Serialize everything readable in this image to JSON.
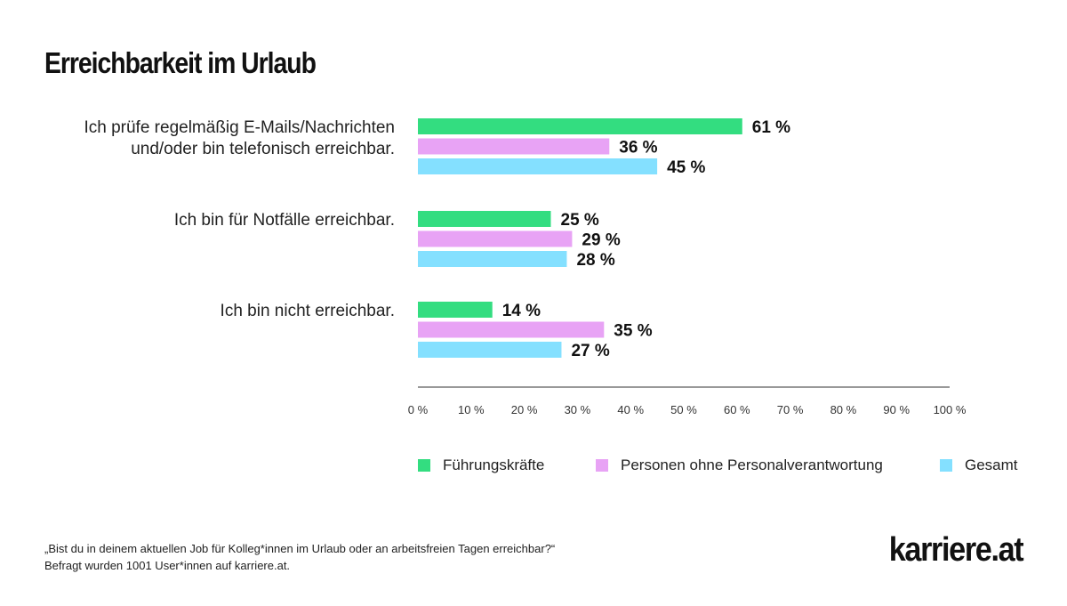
{
  "page": {
    "title": "Erreichbarkeit im Urlaub",
    "footnote_line1": "„Bist du in deinem aktuellen Job für Kolleg*innen im Urlaub oder an arbeitsfreien Tagen erreichbar?“",
    "footnote_line2": "Befragt wurden 1001 User*innen auf karriere.at.",
    "logo": "karriere.at"
  },
  "chart_data": {
    "type": "bar",
    "orientation": "horizontal",
    "title": "Erreichbarkeit im Urlaub",
    "categories": [
      [
        "Ich prüfe regelmäßig E-Mails/Nachrichten",
        "und/oder bin telefonisch erreichbar."
      ],
      [
        "Ich bin für Notfälle erreichbar."
      ],
      [
        "Ich bin nicht erreichbar."
      ]
    ],
    "series": [
      {
        "name": "Führungskräfte",
        "color": "#33dd80",
        "values": [
          61,
          25,
          14
        ],
        "labels": [
          "61 %",
          "25 %",
          "14 %"
        ]
      },
      {
        "name": "Personen ohne Personalverantwortung",
        "color": "#e8a3f5",
        "values": [
          36,
          29,
          35
        ],
        "labels": [
          "36 %",
          "29 %",
          "35 %"
        ]
      },
      {
        "name": "Gesamt",
        "color": "#84e0ff",
        "values": [
          45,
          28,
          27
        ],
        "labels": [
          "45 %",
          "28 %",
          "27 %"
        ]
      }
    ],
    "xlim": [
      0,
      100
    ],
    "xticks": [
      "0 %",
      "10 %",
      "20 %",
      "30 %",
      "40 %",
      "50 %",
      "60 %",
      "70 %",
      "80 %",
      "90 %",
      "100 %"
    ],
    "grid": false,
    "legend_position": "bottom"
  }
}
